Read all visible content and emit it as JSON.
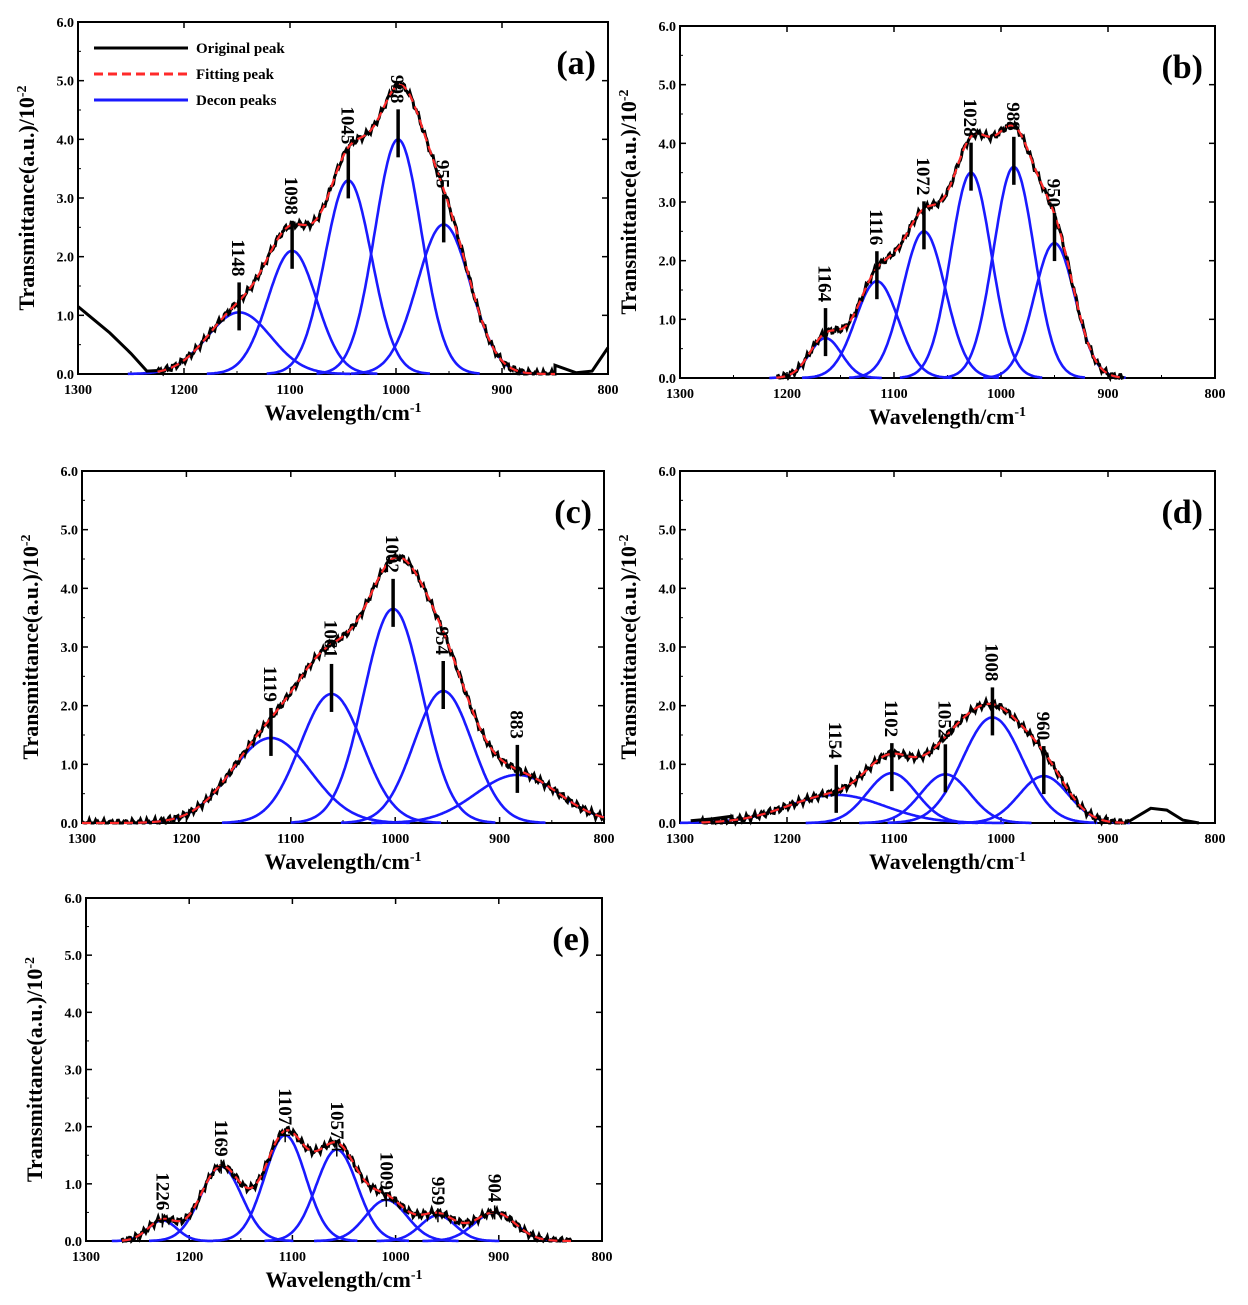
{
  "legend": {
    "original": "Original peak",
    "fitting": "Fitting peak",
    "decon": "Decon peaks"
  },
  "colors": {
    "original": "#000000",
    "fitting": "#ff2a2a",
    "decon": "#1a1aff"
  },
  "chart_data": [
    {
      "id": "a",
      "type": "line",
      "panel_label": "(a)",
      "xlabel": "Wavelength/cm",
      "xlabel_sup": "-1",
      "ylabel": "Transmittance(a.u.)/10",
      "ylabel_sup": "-2",
      "xlim": [
        1300,
        800
      ],
      "ylim": [
        0,
        6.0
      ],
      "xticks": [
        "1300",
        "1200",
        "1100",
        "1000",
        "900",
        "800"
      ],
      "yticks": [
        "0.0",
        "1.0",
        "2.0",
        "3.0",
        "4.0",
        "5.0",
        "6.0"
      ],
      "show_legend": true,
      "peaks": [
        {
          "label": "1148",
          "center": 1148,
          "height": 1.05,
          "sigma": 30
        },
        {
          "label": "1098",
          "center": 1098,
          "height": 2.1,
          "sigma": 23
        },
        {
          "label": "1045",
          "center": 1045,
          "height": 3.3,
          "sigma": 22
        },
        {
          "label": "998",
          "center": 998,
          "height": 4.0,
          "sigma": 22
        },
        {
          "label": "955",
          "center": 955,
          "height": 2.55,
          "sigma": 25
        }
      ],
      "original_left": [
        [
          1300,
          1.15
        ],
        [
          1290,
          1.0
        ],
        [
          1270,
          0.7
        ],
        [
          1250,
          0.35
        ],
        [
          1235,
          0.05
        ]
      ],
      "original_right": [
        [
          850,
          0.15
        ],
        [
          830,
          0.02
        ],
        [
          815,
          0.05
        ],
        [
          800,
          0.45
        ]
      ],
      "fit_range": [
        1225,
        850
      ]
    },
    {
      "id": "b",
      "type": "line",
      "panel_label": "(b)",
      "xlabel": "Wavelength/cm",
      "xlabel_sup": "-1",
      "ylabel": "Transmittance(a.u.)/10",
      "ylabel_sup": "-2",
      "xlim": [
        1300,
        800
      ],
      "ylim": [
        0,
        6.0
      ],
      "xticks": [
        "1300",
        "1200",
        "1100",
        "1000",
        "900",
        "800"
      ],
      "yticks": [
        "0.0",
        "1.0",
        "2.0",
        "3.0",
        "4.0",
        "5.0",
        "6.0"
      ],
      "show_legend": false,
      "peaks": [
        {
          "label": "1164",
          "center": 1164,
          "height": 0.68,
          "sigma": 15
        },
        {
          "label": "1116",
          "center": 1116,
          "height": 1.65,
          "sigma": 20
        },
        {
          "label": "1072",
          "center": 1072,
          "height": 2.5,
          "sigma": 20
        },
        {
          "label": "1028",
          "center": 1028,
          "height": 3.5,
          "sigma": 19
        },
        {
          "label": "988",
          "center": 988,
          "height": 3.6,
          "sigma": 19
        },
        {
          "label": "950",
          "center": 950,
          "height": 2.3,
          "sigma": 19
        }
      ],
      "original_left": [],
      "original_right": [],
      "fit_range": [
        1210,
        885
      ]
    },
    {
      "id": "c",
      "type": "line",
      "panel_label": "(c)",
      "xlabel": "Wavelength/cm",
      "xlabel_sup": "-1",
      "ylabel": "Transmittance(a.u.)/10",
      "ylabel_sup": "-2",
      "xlim": [
        1300,
        800
      ],
      "ylim": [
        0,
        6.0
      ],
      "xticks": [
        "1300",
        "1200",
        "1100",
        "1000",
        "900",
        "800"
      ],
      "yticks": [
        "0.0",
        "1.0",
        "2.0",
        "3.0",
        "4.0",
        "5.0",
        "6.0"
      ],
      "show_legend": false,
      "peaks": [
        {
          "label": "1119",
          "center": 1119,
          "height": 1.45,
          "sigma": 38
        },
        {
          "label": "1061",
          "center": 1061,
          "height": 2.2,
          "sigma": 30
        },
        {
          "label": "1002",
          "center": 1002,
          "height": 3.65,
          "sigma": 28
        },
        {
          "label": "954",
          "center": 954,
          "height": 2.25,
          "sigma": 28
        },
        {
          "label": "883",
          "center": 883,
          "height": 0.82,
          "sigma": 40
        }
      ],
      "original_left": [],
      "original_right": [],
      "fit_range": [
        1300,
        800
      ]
    },
    {
      "id": "d",
      "type": "line",
      "panel_label": "(d)",
      "xlabel": "Wavelength/cm",
      "xlabel_sup": "-1",
      "ylabel": "Transmittance(a.u.)/10",
      "ylabel_sup": "-2",
      "xlim": [
        1300,
        800
      ],
      "ylim": [
        0,
        6.0
      ],
      "xticks": [
        "1300",
        "1200",
        "1100",
        "1000",
        "900",
        "800"
      ],
      "yticks": [
        "0.0",
        "1.0",
        "2.0",
        "3.0",
        "4.0",
        "5.0",
        "6.0"
      ],
      "show_legend": false,
      "peaks": [
        {
          "label": "1154",
          "center": 1154,
          "height": 0.48,
          "sigma": 45
        },
        {
          "label": "1102",
          "center": 1102,
          "height": 0.85,
          "sigma": 23
        },
        {
          "label": "1052",
          "center": 1052,
          "height": 0.83,
          "sigma": 23
        },
        {
          "label": "1008",
          "center": 1008,
          "height": 1.8,
          "sigma": 28
        },
        {
          "label": "960",
          "center": 960,
          "height": 0.8,
          "sigma": 23
        }
      ],
      "original_left": [
        [
          1290,
          0.04
        ],
        [
          1270,
          0.07
        ],
        [
          1250,
          0.12
        ]
      ],
      "original_right": [
        [
          860,
          0.25
        ],
        [
          845,
          0.22
        ],
        [
          830,
          0.05
        ],
        [
          815,
          0.0
        ]
      ],
      "fit_range": [
        1280,
        880
      ]
    },
    {
      "id": "e",
      "type": "line",
      "panel_label": "(e)",
      "xlabel": "Wavelength/cm",
      "xlabel_sup": "-1",
      "ylabel": "Transmittance(a.u.)/10",
      "ylabel_sup": "-2",
      "xlim": [
        1300,
        800
      ],
      "ylim": [
        0,
        6.0
      ],
      "xticks": [
        "1300",
        "1200",
        "1100",
        "1000",
        "900",
        "800"
      ],
      "yticks": [
        "0.0",
        "1.0",
        "2.0",
        "3.0",
        "4.0",
        "5.0",
        "6.0"
      ],
      "show_legend": false,
      "small_markers": true,
      "peaks": [
        {
          "label": "1226",
          "center": 1226,
          "height": 0.36,
          "sigma": 14
        },
        {
          "label": "1169",
          "center": 1169,
          "height": 1.3,
          "sigma": 20
        },
        {
          "label": "1107",
          "center": 1107,
          "height": 1.85,
          "sigma": 20
        },
        {
          "label": "1057",
          "center": 1057,
          "height": 1.6,
          "sigma": 20
        },
        {
          "label": "1009",
          "center": 1009,
          "height": 0.72,
          "sigma": 20
        },
        {
          "label": "959",
          "center": 959,
          "height": 0.45,
          "sigma": 17
        },
        {
          "label": "904",
          "center": 904,
          "height": 0.5,
          "sigma": 20
        }
      ],
      "original_left": [],
      "original_right": [],
      "fit_range": [
        1265,
        830
      ]
    }
  ]
}
